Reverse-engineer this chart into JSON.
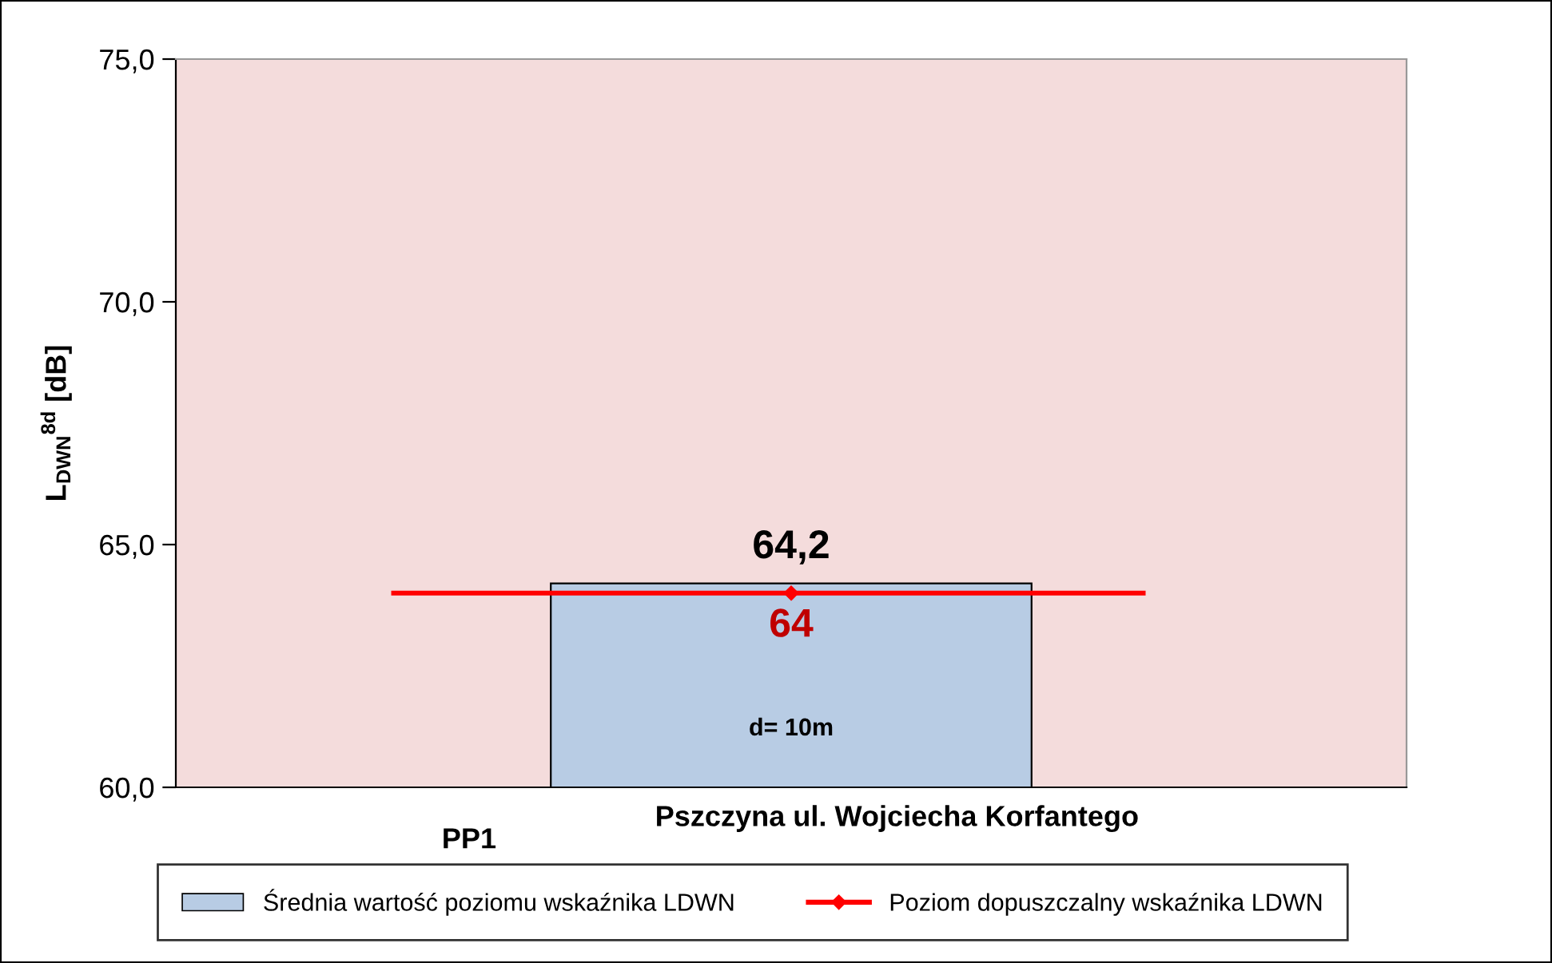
{
  "chart_data": {
    "type": "bar",
    "ylabel": "L$_{DWN}$$^{8d}$ [dB]",
    "categories": [
      "Pszczyna ul. Wojciecha Korfantego"
    ],
    "series": [
      {
        "name": "Średnia wartość poziomu wskaźnika LDWN",
        "color": "#b8cce4",
        "values": [
          64.2
        ],
        "value_labels": [
          "64,2"
        ]
      },
      {
        "name": "Poziom dopuszczalny wskaźnika LDWN",
        "type": "line",
        "color": "#ff0000",
        "marker": "diamond",
        "values": [
          64
        ],
        "value_labels": [
          "64"
        ]
      }
    ],
    "ylim": [
      60,
      75
    ],
    "yticks": [
      {
        "value": 60,
        "label": "60,0"
      },
      {
        "value": 65,
        "label": "65,0"
      },
      {
        "value": 70,
        "label": "70,0"
      },
      {
        "value": 75,
        "label": "75,0"
      }
    ],
    "ref_lines": [
      {
        "axis": "y",
        "value": 64,
        "color": "#ff0000"
      }
    ],
    "annotations": [
      "PP1",
      "d= 10m"
    ],
    "grid": false,
    "legend": "bottom"
  }
}
